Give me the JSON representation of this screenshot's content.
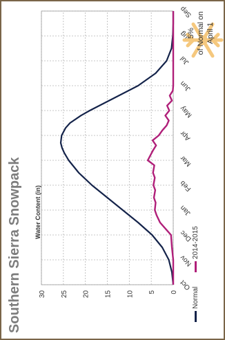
{
  "title": "Southern Sierra Snowpack",
  "callout": {
    "line1": "5%",
    "line2": "of Normal on",
    "line3": "April 1"
  },
  "colors": {
    "normal": "#14234a",
    "current": "#b01f79",
    "grid": "#b5b5b5",
    "snowflake": "#f5c87e"
  },
  "chart_data": {
    "type": "line",
    "ylabel": "Water Content (in)",
    "ylim": [
      0,
      30
    ],
    "yticks": [
      0,
      5,
      10,
      15,
      20,
      25,
      30
    ],
    "categories": [
      "Oct",
      "Nov",
      "Dec",
      "Jan",
      "Feb",
      "Mar",
      "Apr",
      "May",
      "Jun",
      "Jul",
      "Aug",
      "Sep"
    ],
    "grid": true,
    "legend": "bottom",
    "series": [
      {
        "name": "Normal",
        "x": [
          0,
          0.5,
          1,
          1.5,
          2,
          2.5,
          3,
          3.5,
          4,
          4.5,
          5,
          5.3,
          5.5,
          5.7,
          6.0,
          6.3,
          6.5,
          6.8,
          7,
          7.5,
          8,
          8.5,
          9,
          9.5,
          10,
          10.5,
          11
        ],
        "values": [
          0,
          0.3,
          1.0,
          2.5,
          4.8,
          8.0,
          11.5,
          15.0,
          18.5,
          21.5,
          23.8,
          24.8,
          25.3,
          25.6,
          25.4,
          24.5,
          23.5,
          21.0,
          19.0,
          13.5,
          8.0,
          4.0,
          1.5,
          0.4,
          0.1,
          0,
          0
        ]
      },
      {
        "name": "2014-2015",
        "x": [
          0,
          1,
          1.5,
          2,
          2.2,
          2.5,
          2.8,
          3,
          3.3,
          3.5,
          3.8,
          4,
          4.3,
          4.5,
          4.8,
          5,
          5.2,
          5.4,
          5.6,
          5.8,
          6,
          6.2,
          6.4,
          6.6,
          6.8,
          7,
          7.2,
          7.4,
          7.6,
          7.8,
          8,
          9,
          10,
          11
        ],
        "values": [
          0,
          0,
          0.3,
          0.5,
          1.5,
          3.0,
          3.8,
          4.2,
          4.0,
          4.4,
          4.1,
          4.5,
          4.2,
          4.6,
          4.3,
          5.8,
          5.2,
          4.6,
          3.9,
          4.7,
          3.3,
          2.5,
          1.5,
          1.0,
          1.8,
          0.9,
          1.4,
          0.3,
          0.8,
          0.1,
          0,
          0,
          0,
          0
        ]
      }
    ]
  }
}
